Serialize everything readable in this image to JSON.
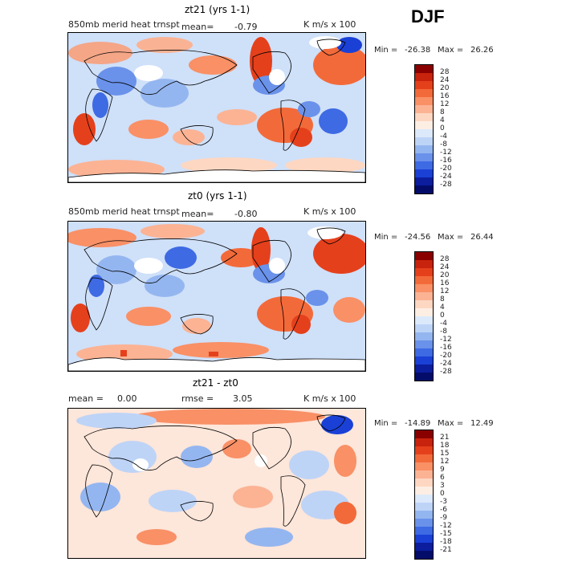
{
  "season": "DJF",
  "chart_data": [
    {
      "type": "heatmap",
      "title": "zt21 (yrs 1-1)",
      "field_label": "850mb merid heat trnspt",
      "mean_label": "mean=",
      "mean_value": "-0.79",
      "units": "K m/s x 100",
      "min_label": "Min =",
      "min": "-26.38",
      "max_label": "Max =",
      "max": "26.26",
      "levels": [
        "28",
        "24",
        "20",
        "16",
        "12",
        "8",
        "4",
        "0",
        "-4",
        "-8",
        "-12",
        "-16",
        "-20",
        "-24",
        "-28"
      ],
      "colors": [
        "#8a0000",
        "#c8230d",
        "#e5401c",
        "#f36a3a",
        "#f99066",
        "#fbb394",
        "#fdd7c2",
        "#fdeee4",
        "#dce9fb",
        "#bed4f7",
        "#94b6f0",
        "#6a92ea",
        "#3e6ae4",
        "#1a40d6",
        "#0c1e9e",
        "#040c6a"
      ]
    },
    {
      "type": "heatmap",
      "title": "zt0 (yrs 1-1)",
      "field_label": "850mb merid heat trnspt",
      "mean_label": "mean=",
      "mean_value": "-0.80",
      "units": "K m/s x 100",
      "min_label": "Min =",
      "min": "-24.56",
      "max_label": "Max =",
      "max": "26.44",
      "levels": [
        "28",
        "24",
        "20",
        "16",
        "12",
        "8",
        "4",
        "0",
        "-4",
        "-8",
        "-12",
        "-16",
        "-20",
        "-24",
        "-28"
      ],
      "colors": [
        "#8a0000",
        "#c8230d",
        "#e5401c",
        "#f36a3a",
        "#f99066",
        "#fbb394",
        "#fdd7c2",
        "#fdeee4",
        "#dce9fb",
        "#bed4f7",
        "#94b6f0",
        "#6a92ea",
        "#3e6ae4",
        "#1a40d6",
        "#0c1e9e",
        "#040c6a"
      ]
    },
    {
      "type": "heatmap",
      "title": "zt21 - zt0",
      "mean_label": "mean =",
      "mean_value": "0.00",
      "rmse_label": "rmse =",
      "rmse_value": "3.05",
      "units": "K m/s x 100",
      "min_label": "Min =",
      "min": "-14.89",
      "max_label": "Max =",
      "max": "12.49",
      "levels": [
        "21",
        "18",
        "15",
        "12",
        "9",
        "6",
        "3",
        "0",
        "-3",
        "-6",
        "-9",
        "-12",
        "-15",
        "-18",
        "-21"
      ],
      "colors": [
        "#8a0000",
        "#c8230d",
        "#e5401c",
        "#f36a3a",
        "#f99066",
        "#fbb394",
        "#fdd7c2",
        "#fdeee4",
        "#dce9fb",
        "#bed4f7",
        "#94b6f0",
        "#6a92ea",
        "#3e6ae4",
        "#1a40d6",
        "#0c1e9e",
        "#040c6a"
      ]
    }
  ]
}
